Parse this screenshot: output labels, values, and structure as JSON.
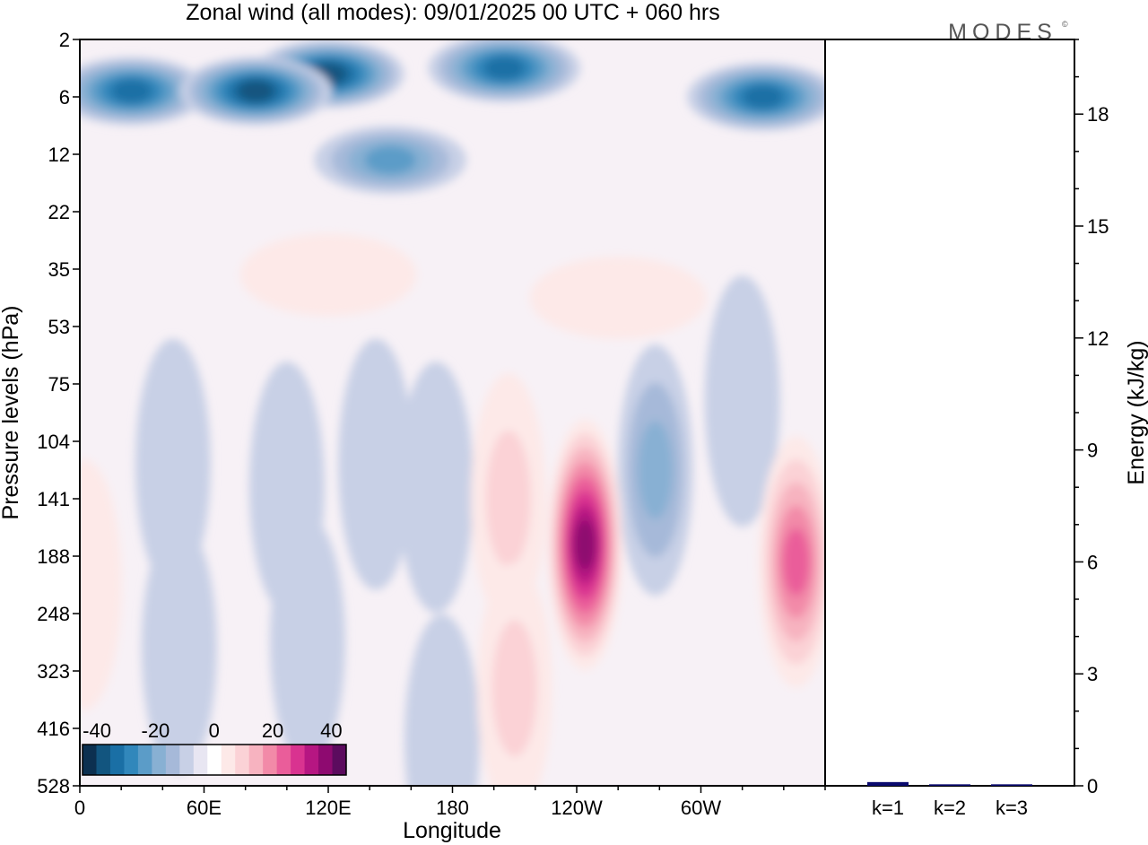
{
  "header": {
    "title": "Zonal wind (all modes):  09/01/2025  00 UTC  + 060 hrs",
    "logo_text": "MODES"
  },
  "chart_data": [
    {
      "type": "heatmap",
      "title": "Zonal wind (all modes):  09/01/2025  00 UTC  + 060 hrs",
      "xlabel": "Longitude",
      "ylabel": "Pressure levels (hPa)",
      "x_tick_labels": [
        "0",
        "60E",
        "120E",
        "180",
        "120W",
        "60W"
      ],
      "x_tick_lon": [
        0,
        60,
        120,
        180,
        240,
        300
      ],
      "xlim": [
        0,
        360
      ],
      "y_tick_labels": [
        "2",
        "6",
        "12",
        "22",
        "35",
        "53",
        "75",
        "104",
        "141",
        "188",
        "248",
        "323",
        "416",
        "528"
      ],
      "y_scale": "level index (top to bottom)",
      "colorbar": {
        "tick_labels": [
          "-40",
          "-20",
          "0",
          "20",
          "40"
        ],
        "min": -45,
        "max": 45,
        "step": 5,
        "colors": [
          "#0c3050",
          "#12557f",
          "#1a6fa5",
          "#3187bb",
          "#5b9cc8",
          "#88b0d3",
          "#a6b9d9",
          "#c8d0e6",
          "#e8e6f2",
          "#ffffff",
          "#fde9e8",
          "#fbd2d6",
          "#f7b3c0",
          "#f28aa8",
          "#ea5d9a",
          "#d93390",
          "#b61682",
          "#8e0a70",
          "#5c0b5e"
        ]
      },
      "features": [
        {
          "lon": 25,
          "level": 0.9,
          "value": -30
        },
        {
          "lon": 120,
          "level": 0.6,
          "value": -37
        },
        {
          "lon": 85,
          "level": 0.9,
          "value": -39
        },
        {
          "lon": 205,
          "level": 0.5,
          "value": -34
        },
        {
          "lon": 330,
          "level": 1.0,
          "value": -30
        },
        {
          "lon": 150,
          "level": 2.1,
          "value": -22
        },
        {
          "lon": 120,
          "level": 4.1,
          "value": 9
        },
        {
          "lon": 260,
          "level": 4.5,
          "value": 5
        },
        {
          "lon": 45,
          "level": 7.4,
          "value": -8
        },
        {
          "lon": 100,
          "level": 7.8,
          "value": -9
        },
        {
          "lon": 143,
          "level": 7.4,
          "value": -7
        },
        {
          "lon": 172,
          "level": 7.8,
          "value": -7
        },
        {
          "lon": 278,
          "level": 7.5,
          "value": -18
        },
        {
          "lon": 320,
          "level": 6.3,
          "value": -5
        },
        {
          "lon": 244,
          "level": 8.8,
          "value": 40
        },
        {
          "lon": 346,
          "level": 9.1,
          "value": 28
        },
        {
          "lon": 207,
          "level": 8.0,
          "value": 10
        },
        {
          "lon": 210,
          "level": 11.3,
          "value": 12
        },
        {
          "lon": 2,
          "level": 9.5,
          "value": 8
        },
        {
          "lon": 48,
          "level": 10.6,
          "value": -7
        },
        {
          "lon": 175,
          "level": 12.2,
          "value": -6
        },
        {
          "lon": 110,
          "level": 10.5,
          "value": -4
        }
      ]
    },
    {
      "type": "bar",
      "ylabel": "Energy (kJ/kg)",
      "categories": [
        "k=1",
        "k=2",
        "k=3"
      ],
      "values": [
        0.1,
        0.04,
        0.04
      ],
      "ylim": [
        0,
        20
      ],
      "y_tick_labels": [
        "0",
        "3",
        "6",
        "9",
        "12",
        "15",
        "18"
      ],
      "bar_color": "#0a0a6e"
    }
  ]
}
